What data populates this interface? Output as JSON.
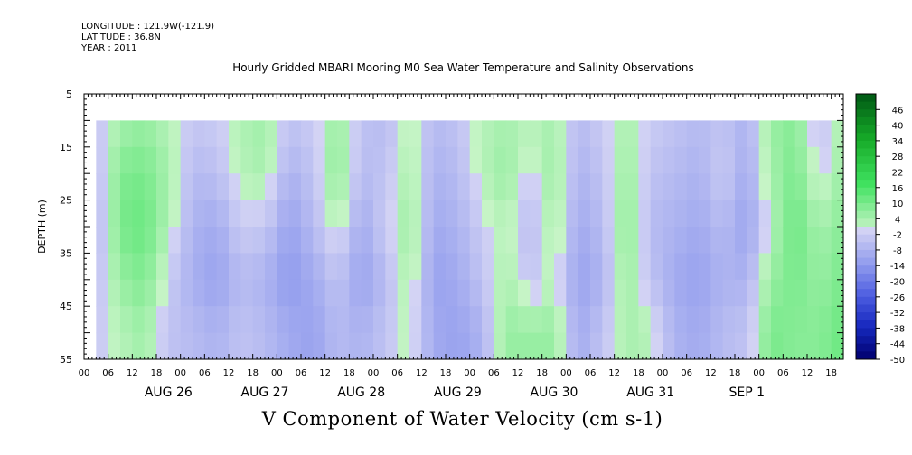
{
  "header": {
    "longitude": "LONGITUDE : 121.9W(-121.9)",
    "latitude": "LATITUDE : 36.8N",
    "year": "YEAR : 2011",
    "title": "Hourly Gridded MBARI Mooring M0 Sea Water Temperature and Salinity Observations"
  },
  "chart_data": {
    "type": "heatmap",
    "title": "Hourly Gridded MBARI Mooring M0 Sea Water Temperature and Salinity Observations",
    "caption": "V Component of Water Velocity (cm s-1)",
    "ylabel": "DEPTH (m)",
    "y_reversed": true,
    "ylim": [
      5,
      55
    ],
    "y_ticks": [
      5,
      15,
      25,
      35,
      45,
      55
    ],
    "data_depth_range": [
      10,
      55
    ],
    "xlim": [
      "2011-08-25 00:00",
      "2011-09-01 21:00"
    ],
    "data_time_range": [
      "2011-08-25 03:00",
      "2011-09-01 21:00"
    ],
    "x_hour_labels": [
      "00",
      "06",
      "12",
      "18",
      "00",
      "06",
      "12",
      "18",
      "00",
      "06",
      "12",
      "18",
      "00",
      "06",
      "12",
      "18",
      "00",
      "06",
      "12",
      "18",
      "00",
      "06",
      "12",
      "18",
      "00",
      "06",
      "12",
      "18",
      "00",
      "06",
      "12",
      "18"
    ],
    "x_date_labels": [
      "AUG 26",
      "AUG 27",
      "AUG 28",
      "AUG 29",
      "AUG 30",
      "AUG 31",
      "SEP  1"
    ],
    "colorbar": {
      "labels": [
        "46",
        "40",
        "34",
        "28",
        "22",
        "16",
        "10",
        "4",
        "-2",
        "-8",
        "-14",
        "-20",
        "-26",
        "-32",
        "-38",
        "-44",
        "-50"
      ],
      "range": [
        -50,
        52
      ],
      "step": 3
    },
    "pattern": {
      "time_hours": [
        3,
        9,
        15,
        21,
        27,
        33,
        39,
        45,
        51,
        57,
        63,
        69,
        75,
        81,
        87,
        93,
        99,
        105,
        111,
        117,
        123,
        129,
        135,
        141,
        147,
        153,
        159,
        165,
        171,
        177,
        183,
        189
      ],
      "depths": [
        10,
        20,
        30,
        40,
        50
      ],
      "values": [
        [
          -4,
          -6,
          -8,
          -5,
          -3
        ],
        [
          4,
          9,
          10,
          6,
          2
        ],
        [
          6,
          10,
          12,
          9,
          5
        ],
        [
          2,
          4,
          3,
          -2,
          -4
        ],
        [
          -3,
          -6,
          -8,
          -9,
          -6
        ],
        [
          -2,
          -5,
          -10,
          -12,
          -8
        ],
        [
          3,
          2,
          -2,
          -6,
          -4
        ],
        [
          5,
          4,
          -3,
          -8,
          -6
        ],
        [
          -4,
          -8,
          -12,
          -14,
          -10
        ],
        [
          -2,
          -4,
          -6,
          -10,
          -12
        ],
        [
          6,
          8,
          2,
          -4,
          -6
        ],
        [
          -4,
          -6,
          -10,
          -12,
          -8
        ],
        [
          -6,
          -4,
          -2,
          -6,
          -4
        ],
        [
          2,
          4,
          6,
          4,
          2
        ],
        [
          -6,
          -8,
          -10,
          -12,
          -10
        ],
        [
          -4,
          -6,
          -8,
          -10,
          -12
        ],
        [
          2,
          2,
          -2,
          -4,
          -8
        ],
        [
          4,
          6,
          2,
          4,
          6
        ],
        [
          2,
          -2,
          -6,
          -4,
          6
        ],
        [
          4,
          6,
          4,
          2,
          6
        ],
        [
          -6,
          -8,
          -10,
          -12,
          -10
        ],
        [
          -2,
          -4,
          -6,
          -8,
          -4
        ],
        [
          4,
          6,
          8,
          6,
          4
        ],
        [
          -2,
          -4,
          -6,
          -4,
          2
        ],
        [
          -4,
          -6,
          -8,
          -10,
          -8
        ],
        [
          -6,
          -8,
          -10,
          -12,
          -10
        ],
        [
          -4,
          -2,
          -6,
          -8,
          -6
        ],
        [
          -8,
          -10,
          -12,
          -8,
          -4
        ],
        [
          6,
          4,
          2,
          6,
          10
        ],
        [
          8,
          10,
          12,
          10,
          8
        ],
        [
          -4,
          -2,
          4,
          6,
          8
        ],
        [
          4,
          6,
          8,
          10,
          12
        ]
      ]
    }
  }
}
